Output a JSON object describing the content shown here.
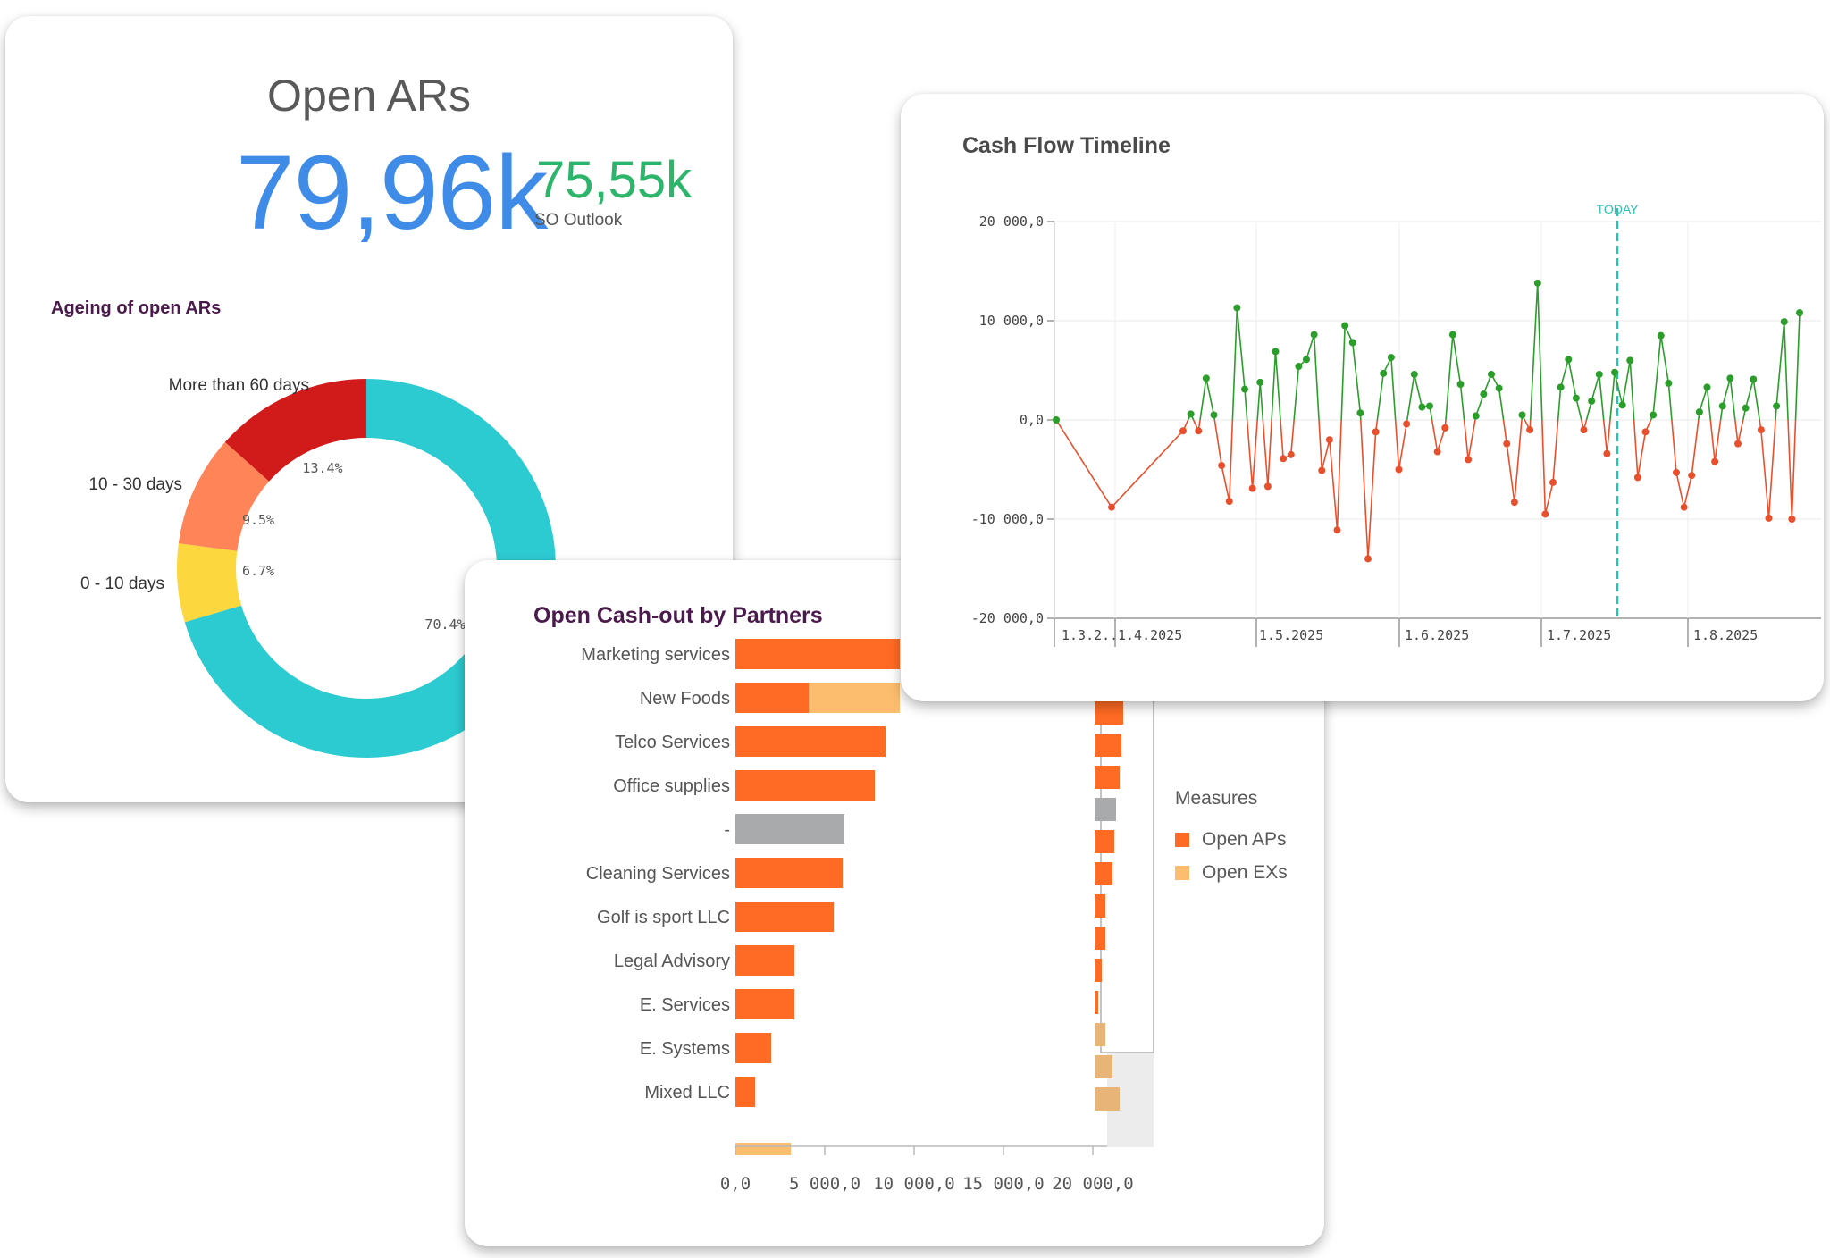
{
  "kpi": {
    "title": "Open ARs",
    "value": "79,96k",
    "secondary_value": "75,55k",
    "secondary_label": "SO Outlook"
  },
  "colors": {
    "ap": "#ff6b24",
    "ex": "#fdbd6e",
    "neutral": "#a9aaac",
    "teal": "#2ccbd1",
    "positive": "#2a9d2a",
    "negative": "#e8502d",
    "kpi_blue": "#3f8ce8",
    "kpi_green": "#2db56b"
  },
  "chart_data": [
    {
      "type": "pie",
      "title": "Ageing of open ARs",
      "slices": [
        {
          "label": "",
          "value": 70.4,
          "value_label": "70.4%",
          "color": "#2ccbd1"
        },
        {
          "label": "0 - 10 days",
          "value": 6.7,
          "value_label": "6.7%",
          "color": "#fdd73e"
        },
        {
          "label": "10 - 30 days",
          "value": 9.5,
          "value_label": "9.5%",
          "color": "#ff8559"
        },
        {
          "label": "More than 60 days",
          "value": 13.4,
          "value_label": "13.4%",
          "color": "#d11a1a"
        }
      ]
    },
    {
      "type": "bar",
      "orientation": "horizontal",
      "stacked": true,
      "title": "Open Cash-out by Partners",
      "categories": [
        "Marketing services",
        "New Foods",
        "Telco Services",
        "Office supplies",
        "-",
        "Cleaning Services",
        "Golf is sport LLC",
        "Legal Advisory",
        "E. Services",
        "E. Systems",
        "Mixed LLC",
        ""
      ],
      "series": [
        {
          "name": "Open APs",
          "values": [
            9200,
            4100,
            8400,
            7800,
            6100,
            6000,
            5500,
            3300,
            3300,
            2000,
            1100,
            0
          ]
        },
        {
          "name": "Open EXs",
          "values": [
            0,
            5100,
            0,
            0,
            0,
            0,
            0,
            0,
            0,
            0,
            0,
            3100
          ]
        }
      ],
      "neutral_categories": [
        "-"
      ],
      "x_ticks": [
        "0,0",
        "5 000,0",
        "10 000,0",
        "15 000,0",
        "20 000,0"
      ],
      "xlim": [
        0,
        23000
      ],
      "legend": {
        "title": "Measures",
        "position": "right"
      },
      "minimap": {
        "bars": [
          {
            "ap": 1600,
            "ex": 0
          },
          {
            "ap": 1500,
            "ex": 0
          },
          {
            "ap": 1400,
            "ex": 0
          },
          {
            "ap": 0,
            "ex": 0,
            "neutral": 1100
          },
          {
            "ap": 1100,
            "ex": 0
          },
          {
            "ap": 1000,
            "ex": 0
          },
          {
            "ap": 600,
            "ex": 0
          },
          {
            "ap": 600,
            "ex": 0
          },
          {
            "ap": 400,
            "ex": 0
          },
          {
            "ap": 200,
            "ex": 0
          },
          {
            "ap": 0,
            "ex": 600
          },
          {
            "ap": 0,
            "ex": 1000
          },
          {
            "ap": 0,
            "ex": 1400
          }
        ]
      }
    },
    {
      "type": "line",
      "title": "Cash Flow Timeline",
      "y_ticks": [
        "20 000,0",
        "10 000,0",
        "0,0",
        "-10 000,0",
        "-20 000,0"
      ],
      "ylim": [
        -20000,
        20000
      ],
      "x_ticks": [
        "1.3.2...",
        "1.4.2025",
        "1.5.2025",
        "1.6.2025",
        "1.7.2025",
        "1.8.2025"
      ],
      "today_label": "TODAY",
      "points": [
        0,
        -8800,
        -1100,
        600,
        -1100,
        4200,
        500,
        -4600,
        -8200,
        11300,
        3100,
        -6900,
        3800,
        -6700,
        6900,
        -3900,
        -3500,
        5400,
        6100,
        8600,
        -5100,
        -2000,
        -11100,
        9500,
        7800,
        700,
        -14000,
        -1200,
        4700,
        6300,
        -5000,
        -400,
        4600,
        1300,
        1400,
        -3200,
        -800,
        8600,
        3600,
        -4000,
        400,
        2600,
        4600,
        3200,
        -2400,
        -8300,
        500,
        -1000,
        13800,
        -9500,
        -6300,
        3300,
        6100,
        2200,
        -1000,
        1900,
        4600,
        -3400,
        4800,
        1500,
        6000,
        -5800,
        -1200,
        500,
        8500,
        3700,
        -5300,
        -8800,
        -5600,
        800,
        3300,
        -4200,
        1400,
        4200,
        -2400,
        1200,
        4100,
        -1000,
        -9900,
        1400,
        9900,
        -10000,
        10800
      ],
      "today_index": 58
    }
  ]
}
